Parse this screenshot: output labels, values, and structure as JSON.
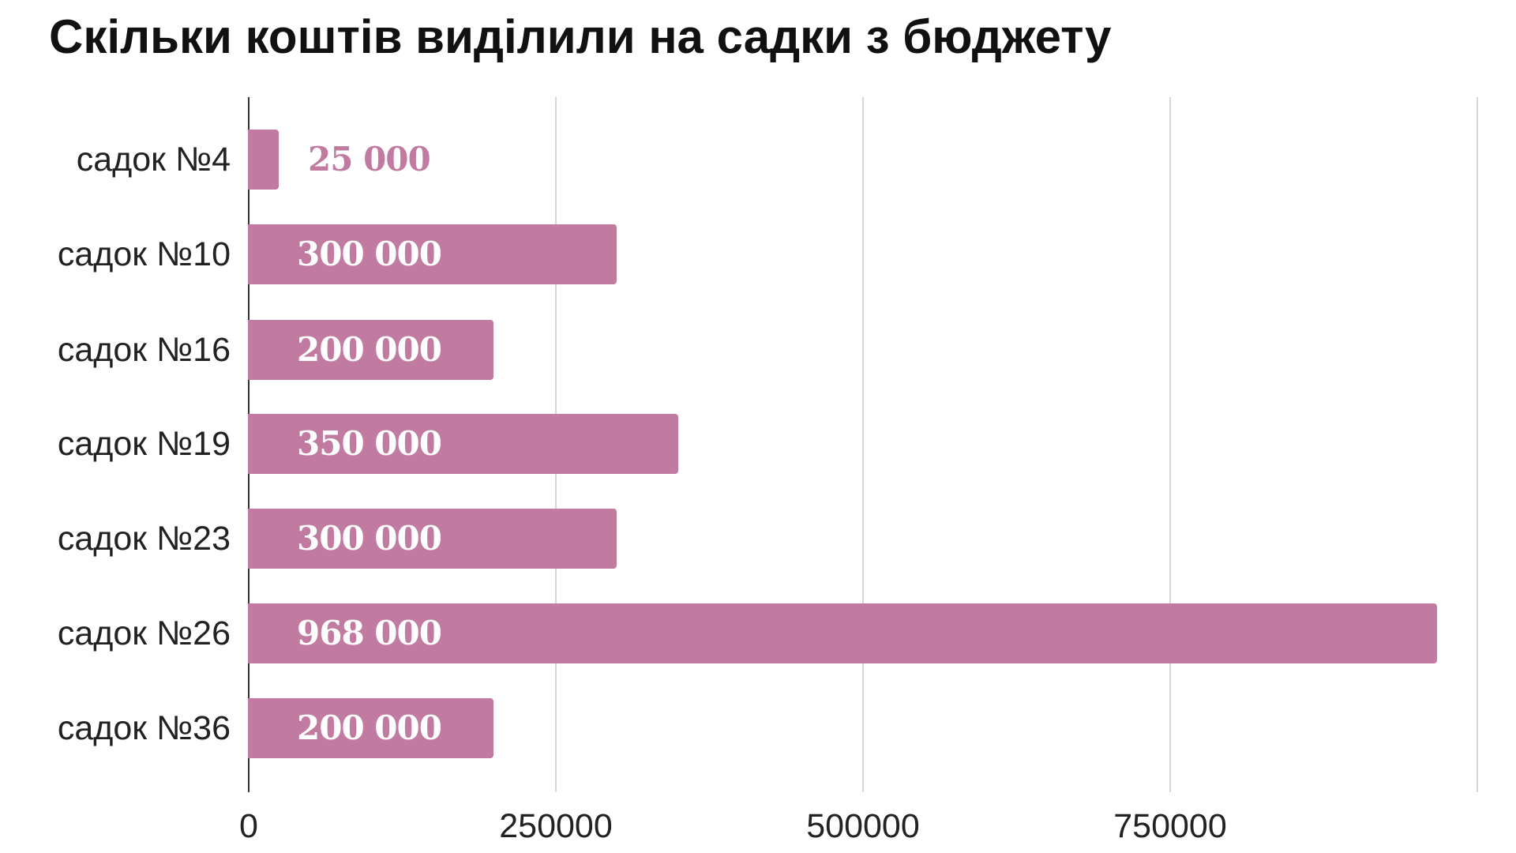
{
  "chart_data": {
    "type": "bar",
    "orientation": "horizontal",
    "title": "Скільки коштів виділили на садки з бюджету",
    "xlabel": "",
    "ylabel": "",
    "xlim": [
      0,
      1000000
    ],
    "grid": true,
    "legend": null,
    "bar_color": "#c17ba0",
    "categories": [
      "садок №4",
      "садок №10",
      "садок №16",
      "садок №19",
      "садок №23",
      "садок №26",
      "садок №36"
    ],
    "values": [
      25000,
      300000,
      200000,
      350000,
      300000,
      968000,
      200000
    ],
    "value_labels": [
      "25 000",
      "300 000",
      "200 000",
      "350 000",
      "300 000",
      "968 000",
      "200 000"
    ],
    "x_ticks": [
      0,
      250000,
      500000,
      750000
    ],
    "x_tick_labels": [
      "0",
      "250000",
      "500000",
      "750000"
    ]
  }
}
